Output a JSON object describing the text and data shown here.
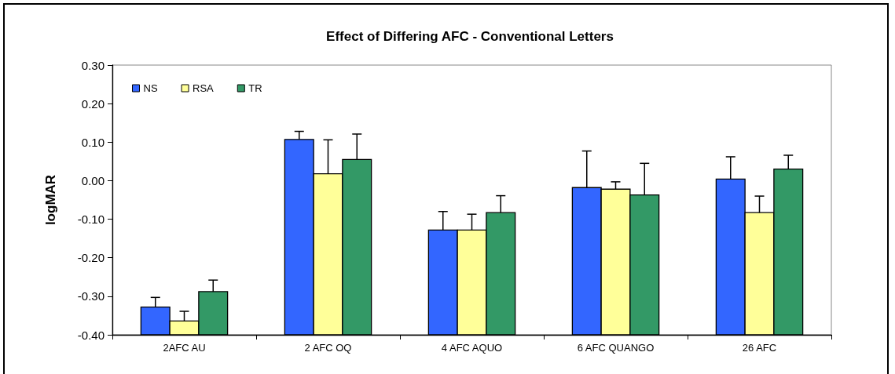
{
  "chart_data": {
    "type": "bar",
    "title": "Effect of Differing AFC - Conventional Letters",
    "ylabel": "logMAR",
    "categories": [
      "2AFC AU",
      "2 AFC OQ",
      "4 AFC AQUO",
      "6 AFC QUANGO",
      "26 AFC"
    ],
    "series": [
      {
        "name": "NS",
        "color": "#3366ff",
        "base": [
          -0.4,
          -0.4,
          -0.4,
          -0.4,
          -0.4
        ],
        "values": [
          0.072,
          0.507,
          0.272,
          0.382,
          0.404
        ],
        "errors": [
          [
            -0.328,
            -0.303
          ],
          [
            0.107,
            0.128
          ],
          [
            -0.128,
            -0.08
          ],
          [
            -0.018,
            0.077
          ],
          [
            0.004,
            0.062
          ]
        ]
      },
      {
        "name": "RSA",
        "color": "#ffff99",
        "base": [
          -0.4,
          -0.4,
          -0.4,
          -0.4,
          -0.4
        ],
        "values": [
          0.036,
          0.418,
          0.272,
          0.378,
          0.317
        ],
        "errors": [
          [
            -0.364,
            -0.339
          ],
          [
            0.018,
            0.106
          ],
          [
            -0.128,
            -0.087
          ],
          [
            -0.022,
            -0.003
          ],
          [
            -0.083,
            -0.04
          ]
        ]
      },
      {
        "name": "TR",
        "color": "#339966",
        "base": [
          -0.4,
          -0.4,
          -0.4,
          -0.4,
          -0.4
        ],
        "values": [
          0.112,
          0.455,
          0.317,
          0.363,
          0.43
        ],
        "errors": [
          [
            -0.288,
            -0.258
          ],
          [
            0.055,
            0.121
          ],
          [
            -0.083,
            -0.039
          ],
          [
            -0.037,
            0.045
          ],
          [
            0.03,
            0.066
          ]
        ]
      }
    ],
    "ylim": [
      -0.4,
      0.3
    ],
    "yticks": [
      {
        "value": -0.4,
        "label": "-0.40"
      },
      {
        "value": -0.3,
        "label": "-0.30"
      },
      {
        "value": -0.2,
        "label": "-0.20"
      },
      {
        "value": -0.1,
        "label": "-0.10"
      },
      {
        "value": 0,
        "label": "0.00"
      },
      {
        "value": 0.1,
        "label": "0.10"
      },
      {
        "value": 0.2,
        "label": "0.20"
      },
      {
        "value": 0.3,
        "label": "0.30"
      }
    ],
    "grid": false,
    "legend": "top left"
  }
}
